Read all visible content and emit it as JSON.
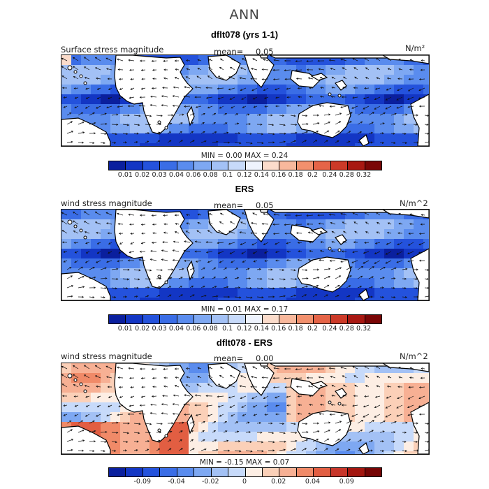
{
  "title": "ANN",
  "chart_data": [
    {
      "type": "heatmap",
      "title": "dflt078 (yrs 1-1)",
      "left_label": "Surface stress magnitude",
      "mean_label": "mean=",
      "mean_value": "0.05",
      "units": "N/m²",
      "min_label": "MIN =",
      "min_value": "0.00",
      "max_label": "MAX =",
      "max_value": "0.24",
      "colorbar": {
        "tick_labels": [
          "0.01",
          "0.02",
          "0.03",
          "0.04",
          "0.06",
          "0.08",
          "0.1",
          "0.12",
          "0.14",
          "0.16",
          "0.18",
          "0.2",
          "0.24",
          "0.28",
          "0.32"
        ],
        "colors": [
          "#0a1f9e",
          "#1336c4",
          "#2452dc",
          "#3a6de6",
          "#5a8cee",
          "#7ea8f2",
          "#a3c1f5",
          "#c7dafa",
          "#eef3fd",
          "#fbdccb",
          "#f8b89c",
          "#f2906d",
          "#e56447",
          "#cc3a28",
          "#a81812",
          "#7a0606"
        ]
      },
      "map_field": "positive"
    },
    {
      "type": "heatmap",
      "title": "ERS",
      "left_label": "wind stress magnitude",
      "mean_label": "mean=",
      "mean_value": "0.05",
      "units": "N/m^2",
      "min_label": "MIN =",
      "min_value": "0.01",
      "max_label": "MAX =",
      "max_value": "0.17",
      "colorbar": {
        "tick_labels": [
          "0.01",
          "0.02",
          "0.03",
          "0.04",
          "0.06",
          "0.08",
          "0.1",
          "0.12",
          "0.14",
          "0.16",
          "0.18",
          "0.2",
          "0.24",
          "0.28",
          "0.32"
        ],
        "colors": [
          "#0a1f9e",
          "#1336c4",
          "#2452dc",
          "#3a6de6",
          "#5a8cee",
          "#7ea8f2",
          "#a3c1f5",
          "#c7dafa",
          "#eef3fd",
          "#fbdccb",
          "#f8b89c",
          "#f2906d",
          "#e56447",
          "#cc3a28",
          "#a81812",
          "#7a0606"
        ]
      },
      "map_field": "positive"
    },
    {
      "type": "heatmap",
      "title": "dflt078 - ERS",
      "left_label": "wind stress magnitude",
      "mean_label": "mean=",
      "mean_value": "0.00",
      "units": "N/m^2",
      "min_label": "MIN =",
      "min_value": "-0.15",
      "max_label": "MAX =",
      "max_value": "0.07",
      "colorbar": {
        "tick_labels": [
          "",
          "-0.09",
          "",
          "-0.04",
          "",
          "-0.02",
          "",
          "0",
          "",
          "0.02",
          "",
          "0.04",
          "",
          "0.09",
          ""
        ],
        "colors": [
          "#0a1f9e",
          "#1336c4",
          "#2452dc",
          "#3a6de6",
          "#5a8cee",
          "#7ea8f2",
          "#a3c1f5",
          "#c7dafa",
          "#fdeee4",
          "#fbd0b8",
          "#f7b094",
          "#f08a68",
          "#e25e42",
          "#c8362a",
          "#a3160f",
          "#760505"
        ]
      },
      "map_field": "difference"
    }
  ]
}
